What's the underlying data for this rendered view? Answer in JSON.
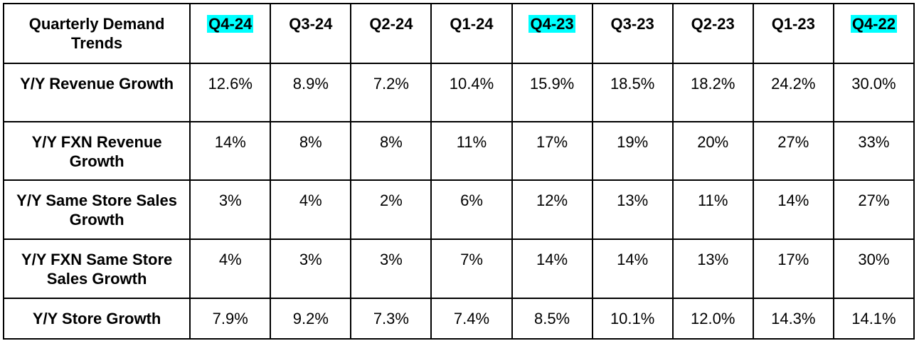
{
  "chart_data": {
    "type": "table",
    "title": "Quarterly Demand Trends",
    "columns": [
      {
        "label": "Q4-24",
        "highlighted": true
      },
      {
        "label": "Q3-24",
        "highlighted": false
      },
      {
        "label": "Q2-24",
        "highlighted": false
      },
      {
        "label": "Q1-24",
        "highlighted": false
      },
      {
        "label": "Q4-23",
        "highlighted": true
      },
      {
        "label": "Q3-23",
        "highlighted": false
      },
      {
        "label": "Q2-23",
        "highlighted": false
      },
      {
        "label": "Q1-23",
        "highlighted": false
      },
      {
        "label": "Q4-22",
        "highlighted": true
      }
    ],
    "rows": [
      {
        "label": "Y/Y Revenue Growth",
        "values": [
          "12.6%",
          "8.9%",
          "7.2%",
          "10.4%",
          "15.9%",
          "18.5%",
          "18.2%",
          "24.2%",
          "30.0%"
        ]
      },
      {
        "label": "Y/Y FXN Revenue Growth",
        "values": [
          "14%",
          "8%",
          "8%",
          "11%",
          "17%",
          "19%",
          "20%",
          "27%",
          "33%"
        ]
      },
      {
        "label": "Y/Y Same Store Sales Growth",
        "values": [
          "3%",
          "4%",
          "2%",
          "6%",
          "12%",
          "13%",
          "11%",
          "14%",
          "27%"
        ]
      },
      {
        "label": "Y/Y FXN Same Store Sales Growth",
        "values": [
          "4%",
          "3%",
          "3%",
          "7%",
          "14%",
          "14%",
          "13%",
          "17%",
          "30%"
        ]
      },
      {
        "label": "Y/Y Store Growth",
        "values": [
          "7.9%",
          "9.2%",
          "7.3%",
          "7.4%",
          "8.5%",
          "10.1%",
          "12.0%",
          "14.3%",
          "14.1%"
        ]
      }
    ],
    "colors": {
      "highlight": "#00ffff",
      "border": "#000000",
      "text": "#000000",
      "background": "#ffffff"
    }
  }
}
